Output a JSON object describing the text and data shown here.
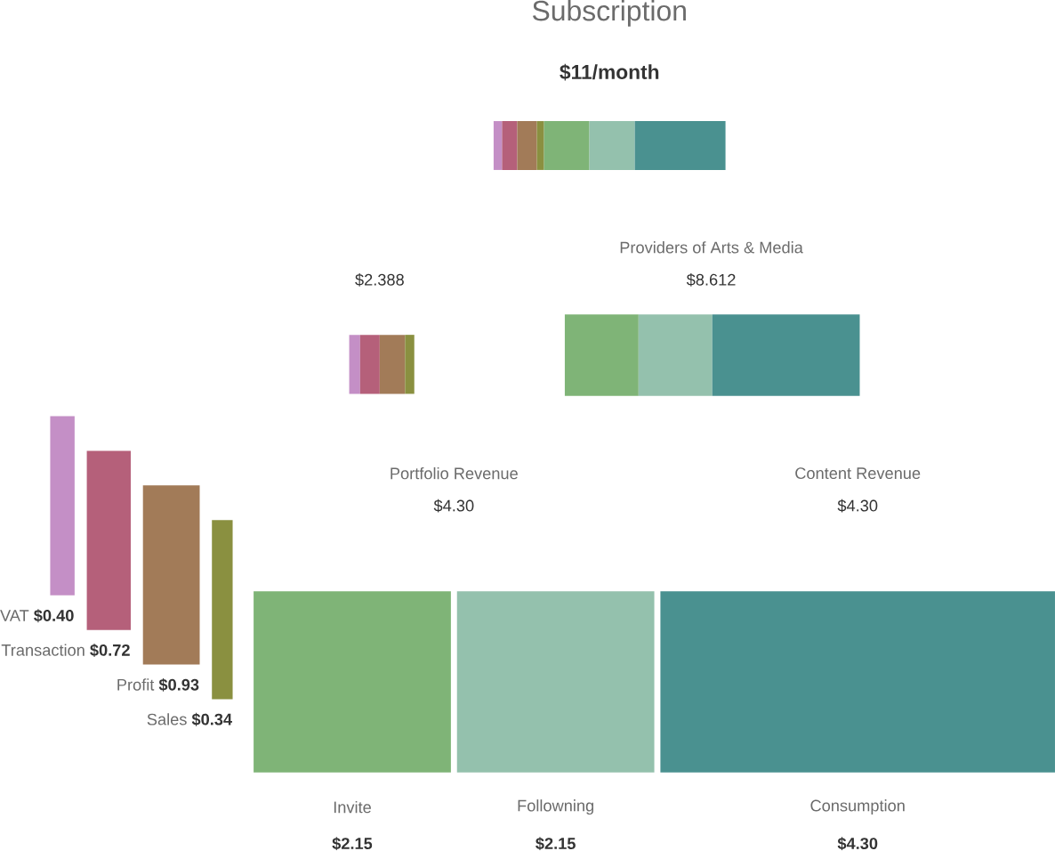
{
  "chart_data": {
    "type": "other",
    "title": "Subscription",
    "subtitle": "$11/month",
    "categories": [
      "VAT",
      "Transaction",
      "Profit",
      "Sales",
      "Invite",
      "Followning",
      "Consumption"
    ],
    "values": [
      0.4,
      0.72,
      0.93,
      0.34,
      2.15,
      2.15,
      4.3
    ],
    "value_labels": [
      "$0.40",
      "$0.72",
      "$0.93",
      "$0.34",
      "$2.15",
      "$2.15",
      "$4.30"
    ],
    "colors": [
      "#c48fc6",
      "#b5607a",
      "#a27b58",
      "#8a9040",
      "#7fb477",
      "#94c1ad",
      "#4a9190"
    ],
    "annotations": [
      "$2.388",
      "Providers of Arts & Media",
      "$8.612",
      "Portfolio Revenue",
      "$4.30",
      "Content Revenue",
      "$4.30"
    ]
  }
}
